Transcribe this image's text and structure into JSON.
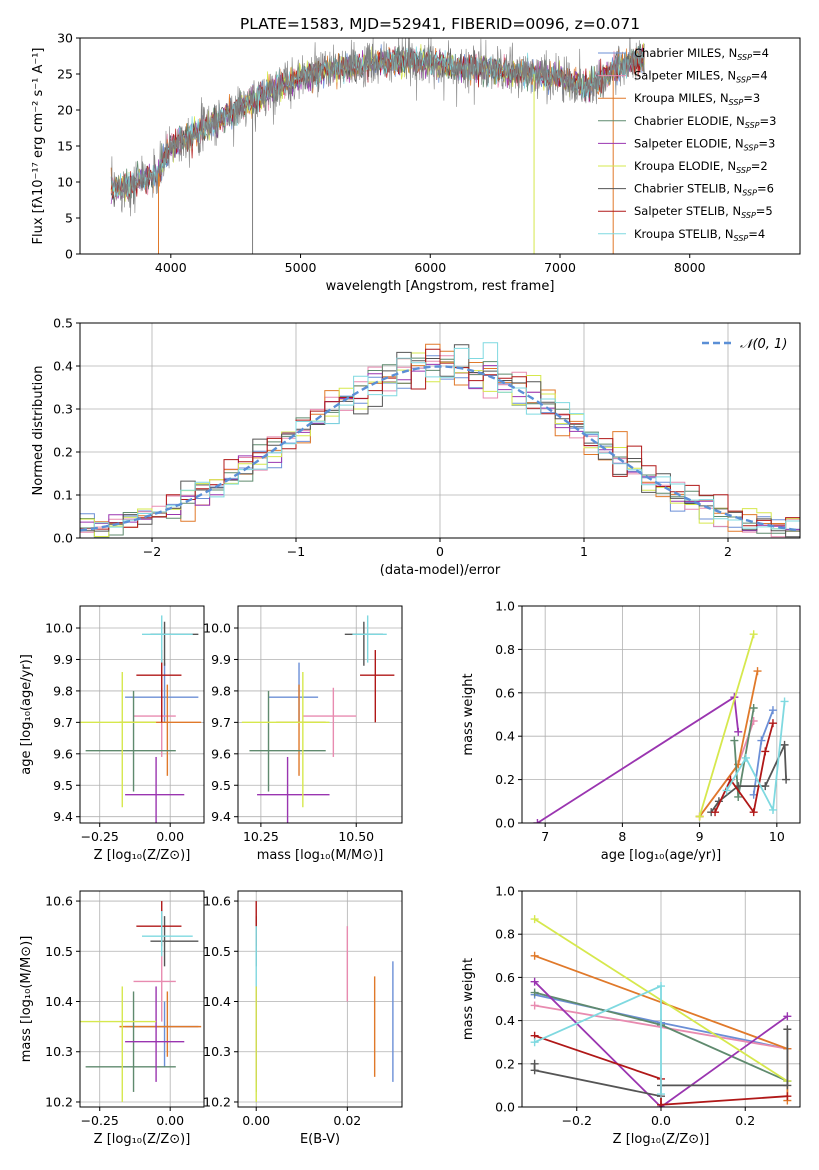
{
  "figure": {
    "title": "PLATE=1583, MJD=52941, FIBERID=0096, z=0.071"
  },
  "colors": {
    "Chabrier MILES": "#6b8fd6",
    "Salpeter MILES": "#e88bb0",
    "Kroupa MILES": "#e0792a",
    "Chabrier ELODIE": "#5f8a6e",
    "Salpeter ELODIE": "#9a35b0",
    "Kroupa ELODIE": "#d6e84d",
    "Chabrier STELIB": "#555555",
    "Salpeter STELIB": "#b01818",
    "Kroupa STELIB": "#7fd9e0",
    "normal": "#5b8fd6",
    "grid": "#b0b0b0",
    "spectrum": "#7f7f7f"
  },
  "chart_data": [
    {
      "id": "spectrum",
      "type": "line",
      "xlabel": "wavelength [Angstrom, rest frame]",
      "ylabel": "Flux [fλ10⁻¹⁷ erg cm⁻² s⁻¹ A⁻¹]",
      "xlim": [
        3300,
        8850
      ],
      "ylim": [
        0,
        30
      ],
      "xticks": [
        4000,
        5000,
        6000,
        7000,
        8000
      ],
      "yticks": [
        0,
        5,
        10,
        15,
        20,
        25,
        30
      ],
      "grid": false,
      "legend_position": "top-right",
      "legend": [
        {
          "model": "Chabrier MILES",
          "nssp": "4"
        },
        {
          "model": "Salpeter MILES",
          "nssp": "4"
        },
        {
          "model": "Kroupa MILES",
          "nssp": "3"
        },
        {
          "model": "Chabrier ELODIE",
          "nssp": "3"
        },
        {
          "model": "Salpeter ELODIE",
          "nssp": "3"
        },
        {
          "model": "Kroupa ELODIE",
          "nssp": "2"
        },
        {
          "model": "Chabrier STELIB",
          "nssp": "6"
        },
        {
          "model": "Salpeter STELIB",
          "nssp": "5"
        },
        {
          "model": "Kroupa STELIB",
          "nssp": "4"
        }
      ],
      "continuum": [
        [
          3540,
          9
        ],
        [
          3700,
          9.5
        ],
        [
          3800,
          10.5
        ],
        [
          3900,
          11
        ],
        [
          4000,
          15
        ],
        [
          4200,
          17
        ],
        [
          4400,
          19
        ],
        [
          4600,
          21
        ],
        [
          4800,
          23
        ],
        [
          5000,
          24.5
        ],
        [
          5200,
          25.5
        ],
        [
          5400,
          26
        ],
        [
          5600,
          26.5
        ],
        [
          5800,
          26.8
        ],
        [
          6000,
          26.5
        ],
        [
          6200,
          26
        ],
        [
          6400,
          25.8
        ],
        [
          6600,
          25.3
        ],
        [
          6800,
          25
        ],
        [
          7000,
          24.5
        ],
        [
          7200,
          23
        ],
        [
          7400,
          25.5
        ],
        [
          7600,
          27
        ]
      ],
      "model_range": [
        3540,
        7650
      ],
      "data_range": [
        3540,
        7650
      ]
    },
    {
      "id": "residuals",
      "type": "histogram",
      "xlabel": "(data-model)/error",
      "ylabel": "Normed distribution",
      "xlim": [
        -2.5,
        2.5
      ],
      "ylim": [
        0,
        0.5
      ],
      "xticks": [
        -2,
        -1,
        0,
        1,
        2
      ],
      "yticks": [
        0.0,
        0.1,
        0.2,
        0.3,
        0.4,
        0.5
      ],
      "grid": true,
      "legend_position": "top-right",
      "normal_curve_label": "𝒩(0, 1)",
      "bin_width": 0.1
    },
    {
      "id": "age-vs-Z",
      "type": "errorbar",
      "xlabel": "Z [log₁₀(Z/Z⊙)]",
      "ylabel": "age  [log₁₀(age/yr)]",
      "xlim": [
        -0.32,
        0.12
      ],
      "ylim": [
        9.38,
        10.07
      ],
      "xticks": [
        -0.25,
        0.0
      ],
      "yticks": [
        9.4,
        9.5,
        9.6,
        9.7,
        9.8,
        9.9,
        10.0
      ],
      "grid": true,
      "points": [
        {
          "model": "Chabrier MILES",
          "x": -0.02,
          "xerr": [
            0.14,
            0.12
          ],
          "y": 9.78,
          "yerr": [
            0.08,
            0.11
          ]
        },
        {
          "model": "Salpeter MILES",
          "x": -0.03,
          "xerr": [
            0.1,
            0.05
          ],
          "y": 9.72,
          "yerr": [
            0.13,
            0.09
          ]
        },
        {
          "model": "Kroupa MILES",
          "x": -0.01,
          "xerr": [
            0.17,
            0.12
          ],
          "y": 9.7,
          "yerr": [
            0.17,
            0.12
          ]
        },
        {
          "model": "Chabrier ELODIE",
          "x": -0.13,
          "xerr": [
            0.17,
            0.15
          ],
          "y": 9.61,
          "yerr": [
            0.13,
            0.19
          ]
        },
        {
          "model": "Salpeter ELODIE",
          "x": -0.05,
          "xerr": [
            0.11,
            0.1
          ],
          "y": 9.47,
          "yerr": [
            0.24,
            0.12
          ]
        },
        {
          "model": "Kroupa ELODIE",
          "x": -0.17,
          "xerr": [
            0.15,
            0.12
          ],
          "y": 9.7,
          "yerr": [
            0.27,
            0.16
          ]
        },
        {
          "model": "Chabrier STELIB",
          "x": -0.02,
          "xerr": [
            0.05,
            0.12
          ],
          "y": 9.98,
          "yerr": [
            0.1,
            0.04
          ]
        },
        {
          "model": "Salpeter STELIB",
          "x": -0.03,
          "xerr": [
            0.09,
            0.07
          ],
          "y": 9.85,
          "yerr": [
            0.15,
            0.08
          ]
        },
        {
          "model": "Kroupa STELIB",
          "x": -0.03,
          "xerr": [
            0.07,
            0.11
          ],
          "y": 9.98,
          "yerr": [
            0.09,
            0.06
          ]
        }
      ]
    },
    {
      "id": "age-vs-mass",
      "type": "errorbar",
      "xlabel": "mass [log₁₀(M/M⊙)]",
      "ylabel": "",
      "xlim": [
        10.19,
        10.62
      ],
      "ylim": [
        9.38,
        10.07
      ],
      "xticks": [
        10.25,
        10.5
      ],
      "yticks": [
        9.4,
        9.5,
        9.6,
        9.7,
        9.8,
        9.9,
        10.0
      ],
      "grid": true,
      "points": [
        {
          "model": "Chabrier MILES",
          "x": 10.35,
          "xerr": [
            0.08,
            0.05
          ],
          "y": 9.78,
          "yerr": [
            0.08,
            0.11
          ]
        },
        {
          "model": "Salpeter MILES",
          "x": 10.44,
          "xerr": [
            0.08,
            0.06
          ],
          "y": 9.72,
          "yerr": [
            0.13,
            0.09
          ]
        },
        {
          "model": "Kroupa MILES",
          "x": 10.35,
          "xerr": [
            0.06,
            0.07
          ],
          "y": 9.7,
          "yerr": [
            0.17,
            0.12
          ]
        },
        {
          "model": "Chabrier ELODIE",
          "x": 10.27,
          "xerr": [
            0.05,
            0.15
          ],
          "y": 9.61,
          "yerr": [
            0.13,
            0.19
          ]
        },
        {
          "model": "Salpeter ELODIE",
          "x": 10.32,
          "xerr": [
            0.08,
            0.11
          ],
          "y": 9.47,
          "yerr": [
            0.24,
            0.12
          ]
        },
        {
          "model": "Kroupa ELODIE",
          "x": 10.36,
          "xerr": [
            0.16,
            0.07
          ],
          "y": 9.7,
          "yerr": [
            0.27,
            0.16
          ]
        },
        {
          "model": "Chabrier STELIB",
          "x": 10.52,
          "xerr": [
            0.05,
            0.05
          ],
          "y": 9.98,
          "yerr": [
            0.1,
            0.04
          ]
        },
        {
          "model": "Salpeter STELIB",
          "x": 10.55,
          "xerr": [
            0.04,
            0.05
          ],
          "y": 9.85,
          "yerr": [
            0.15,
            0.08
          ]
        },
        {
          "model": "Kroupa STELIB",
          "x": 10.53,
          "xerr": [
            0.04,
            0.05
          ],
          "y": 9.98,
          "yerr": [
            0.09,
            0.06
          ]
        }
      ]
    },
    {
      "id": "weight-vs-age",
      "type": "line",
      "xlabel": "age  [log₁₀(age/yr)]",
      "ylabel": "mass weight",
      "xlim": [
        6.7,
        10.3
      ],
      "ylim": [
        0,
        1
      ],
      "xticks": [
        7,
        8,
        9,
        10
      ],
      "yticks": [
        0.0,
        0.2,
        0.4,
        0.6,
        0.8,
        1.0
      ],
      "grid": true,
      "series": [
        {
          "model": "Chabrier MILES",
          "x": [
            9.7,
            9.8,
            9.95
          ],
          "y": [
            0.13,
            0.38,
            0.52
          ]
        },
        {
          "model": "Salpeter MILES",
          "x": [
            9.0,
            9.5,
            9.7
          ],
          "y": [
            0.03,
            0.27,
            0.47
          ]
        },
        {
          "model": "Kroupa MILES",
          "x": [
            9.0,
            9.5,
            9.75
          ],
          "y": [
            0.03,
            0.27,
            0.7
          ]
        },
        {
          "model": "Chabrier ELODIE",
          "x": [
            9.45,
            9.5,
            9.7
          ],
          "y": [
            0.38,
            0.12,
            0.53
          ]
        },
        {
          "model": "Salpeter ELODIE",
          "x": [
            6.9,
            9.45,
            9.5
          ],
          "y": [
            0.0,
            0.58,
            0.42
          ]
        },
        {
          "model": "Kroupa ELODIE",
          "x": [
            9.0,
            9.7
          ],
          "y": [
            0.03,
            0.87
          ]
        },
        {
          "model": "Chabrier STELIB",
          "x": [
            9.15,
            9.25,
            9.5,
            9.85,
            10.1,
            10.12
          ],
          "y": [
            0.05,
            0.1,
            0.17,
            0.17,
            0.36,
            0.2
          ]
        },
        {
          "model": "Salpeter STELIB",
          "x": [
            9.2,
            9.4,
            9.7,
            9.85,
            9.95
          ],
          "y": [
            0.05,
            0.2,
            0.05,
            0.33,
            0.46
          ]
        },
        {
          "model": "Kroupa STELIB",
          "x": [
            9.35,
            9.6,
            9.95,
            10.1
          ],
          "y": [
            0.15,
            0.3,
            0.06,
            0.56
          ]
        }
      ]
    },
    {
      "id": "mass-vs-Z",
      "type": "errorbar",
      "xlabel": "Z [log₁₀(Z/Z⊙)]",
      "ylabel": "mass [log₁₀(M/M⊙)]",
      "xlim": [
        -0.32,
        0.12
      ],
      "ylim": [
        10.19,
        10.62
      ],
      "xticks": [
        -0.25,
        0.0
      ],
      "yticks": [
        10.2,
        10.3,
        10.4,
        10.5,
        10.6
      ],
      "grid": true,
      "points": [
        {
          "model": "Chabrier MILES",
          "x": -0.02,
          "xerr": [
            0.14,
            0.12
          ],
          "y": 10.35,
          "yerr": [
            0.08,
            0.05
          ]
        },
        {
          "model": "Salpeter MILES",
          "x": -0.03,
          "xerr": [
            0.1,
            0.05
          ],
          "y": 10.44,
          "yerr": [
            0.08,
            0.06
          ]
        },
        {
          "model": "Kroupa MILES",
          "x": -0.01,
          "xerr": [
            0.17,
            0.12
          ],
          "y": 10.35,
          "yerr": [
            0.06,
            0.07
          ]
        },
        {
          "model": "Chabrier ELODIE",
          "x": -0.13,
          "xerr": [
            0.17,
            0.15
          ],
          "y": 10.27,
          "yerr": [
            0.05,
            0.15
          ]
        },
        {
          "model": "Salpeter ELODIE",
          "x": -0.05,
          "xerr": [
            0.11,
            0.1
          ],
          "y": 10.32,
          "yerr": [
            0.08,
            0.11
          ]
        },
        {
          "model": "Kroupa ELODIE",
          "x": -0.17,
          "xerr": [
            0.15,
            0.12
          ],
          "y": 10.36,
          "yerr": [
            0.16,
            0.07
          ]
        },
        {
          "model": "Chabrier STELIB",
          "x": -0.02,
          "xerr": [
            0.05,
            0.12
          ],
          "y": 10.52,
          "yerr": [
            0.05,
            0.05
          ]
        },
        {
          "model": "Salpeter STELIB",
          "x": -0.03,
          "xerr": [
            0.09,
            0.07
          ],
          "y": 10.55,
          "yerr": [
            0.04,
            0.05
          ]
        },
        {
          "model": "Kroupa STELIB",
          "x": -0.03,
          "xerr": [
            0.07,
            0.11
          ],
          "y": 10.53,
          "yerr": [
            0.04,
            0.05
          ]
        }
      ]
    },
    {
      "id": "mass-vs-ebv",
      "type": "errorbar",
      "xlabel": "E(B-V)",
      "ylabel": "",
      "xlim": [
        -0.004,
        0.032
      ],
      "ylim": [
        10.19,
        10.62
      ],
      "xticks": [
        0.0,
        0.02
      ],
      "yticks": [
        10.2,
        10.3,
        10.4,
        10.5,
        10.6
      ],
      "grid": true,
      "points": [
        {
          "model": "Chabrier MILES",
          "x": 0.03,
          "y": 10.36,
          "yerr": [
            0.12,
            0.12
          ]
        },
        {
          "model": "Salpeter MILES",
          "x": 0.02,
          "y": 10.47,
          "yerr": [
            0.07,
            0.08
          ]
        },
        {
          "model": "Kroupa MILES",
          "x": 0.026,
          "y": 10.35,
          "yerr": [
            0.1,
            0.1
          ]
        },
        {
          "model": "Chabrier ELODIE",
          "x": 0.0,
          "y": 10.27,
          "yerr": [
            0.05,
            0.16
          ]
        },
        {
          "model": "Salpeter ELODIE",
          "x": 0.0,
          "y": 10.32,
          "yerr": [
            0.08,
            0.11
          ]
        },
        {
          "model": "Kroupa ELODIE",
          "x": 0.0,
          "y": 10.36,
          "yerr": [
            0.16,
            0.07
          ]
        },
        {
          "model": "Chabrier STELIB",
          "x": 0.0,
          "y": 10.52,
          "yerr": [
            0.05,
            0.05
          ]
        },
        {
          "model": "Salpeter STELIB",
          "x": 0.0,
          "y": 10.55,
          "yerr": [
            0.04,
            0.05
          ]
        },
        {
          "model": "Kroupa STELIB",
          "x": 0.0,
          "y": 10.5,
          "yerr": [
            0.07,
            0.05
          ]
        }
      ]
    },
    {
      "id": "weight-vs-Z",
      "type": "line",
      "xlabel": "Z [log₁₀(Z/Z⊙)]",
      "ylabel": "mass weight",
      "xlim": [
        -0.33,
        0.33
      ],
      "ylim": [
        0,
        1
      ],
      "xticks": [
        -0.2,
        0.0,
        0.2
      ],
      "yticks": [
        0.0,
        0.2,
        0.4,
        0.6,
        0.8,
        1.0
      ],
      "grid": true,
      "series": [
        {
          "model": "Chabrier MILES",
          "x": [
            -0.3,
            0.0,
            0.3
          ],
          "y": [
            0.52,
            0.39,
            0.27
          ]
        },
        {
          "model": "Salpeter MILES",
          "x": [
            -0.3,
            0.3
          ],
          "y": [
            0.47,
            0.27
          ]
        },
        {
          "model": "Kroupa MILES",
          "x": [
            -0.3,
            0.3,
            0.3
          ],
          "y": [
            0.7,
            0.27,
            0.03
          ]
        },
        {
          "model": "Chabrier ELODIE",
          "x": [
            -0.3,
            0.0,
            0.3
          ],
          "y": [
            0.53,
            0.38,
            0.12
          ]
        },
        {
          "model": "Salpeter ELODIE",
          "x": [
            -0.3,
            0.0,
            0.3
          ],
          "y": [
            0.58,
            0.0,
            0.42
          ]
        },
        {
          "model": "Kroupa ELODIE",
          "x": [
            -0.3,
            0.3
          ],
          "y": [
            0.87,
            0.12
          ]
        },
        {
          "model": "Chabrier STELIB",
          "x": [
            -0.3,
            -0.3,
            0.0,
            0.0,
            0.3,
            0.3
          ],
          "y": [
            0.2,
            0.17,
            0.05,
            0.1,
            0.1,
            0.36
          ]
        },
        {
          "model": "Salpeter STELIB",
          "x": [
            -0.3,
            0.0,
            0.0,
            0.3
          ],
          "y": [
            0.33,
            0.13,
            0.01,
            0.05
          ]
        },
        {
          "model": "Kroupa STELIB",
          "x": [
            -0.3,
            0.0,
            0.0
          ],
          "y": [
            0.3,
            0.56,
            0.06
          ]
        }
      ]
    }
  ]
}
